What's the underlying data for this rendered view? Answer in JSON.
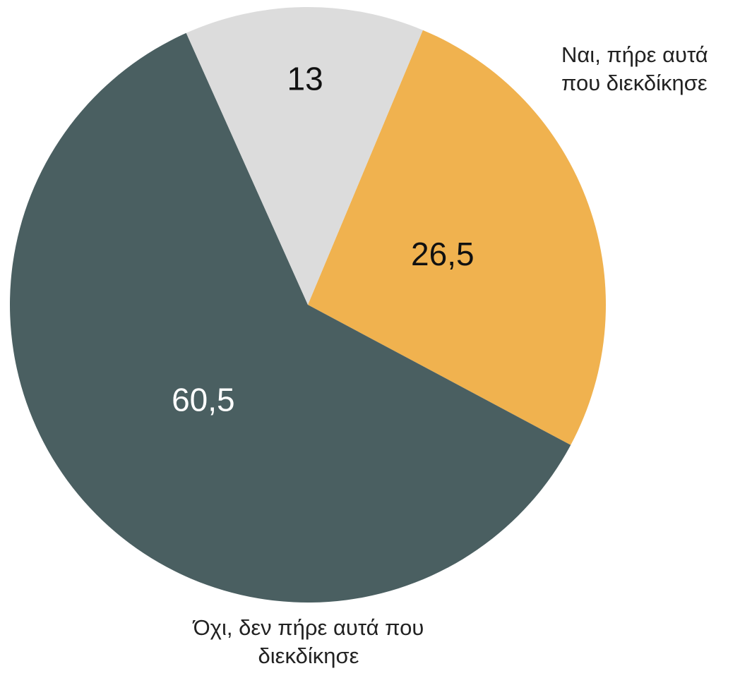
{
  "chart_data": {
    "type": "pie",
    "categories": [
      "Ναι, πήρε αυτά που διεκδίκησε",
      "Όχι, δεν πήρε αυτά που διεκδίκησε",
      null
    ],
    "values": [
      26.5,
      60.5,
      13
    ],
    "value_labels": [
      "26,5",
      "60,5",
      "13"
    ],
    "colors": [
      "#f0b24f",
      "#4a5f61",
      "#dcdcdc"
    ],
    "label_colors": [
      "#111111",
      "#ffffff",
      "#111111"
    ]
  }
}
